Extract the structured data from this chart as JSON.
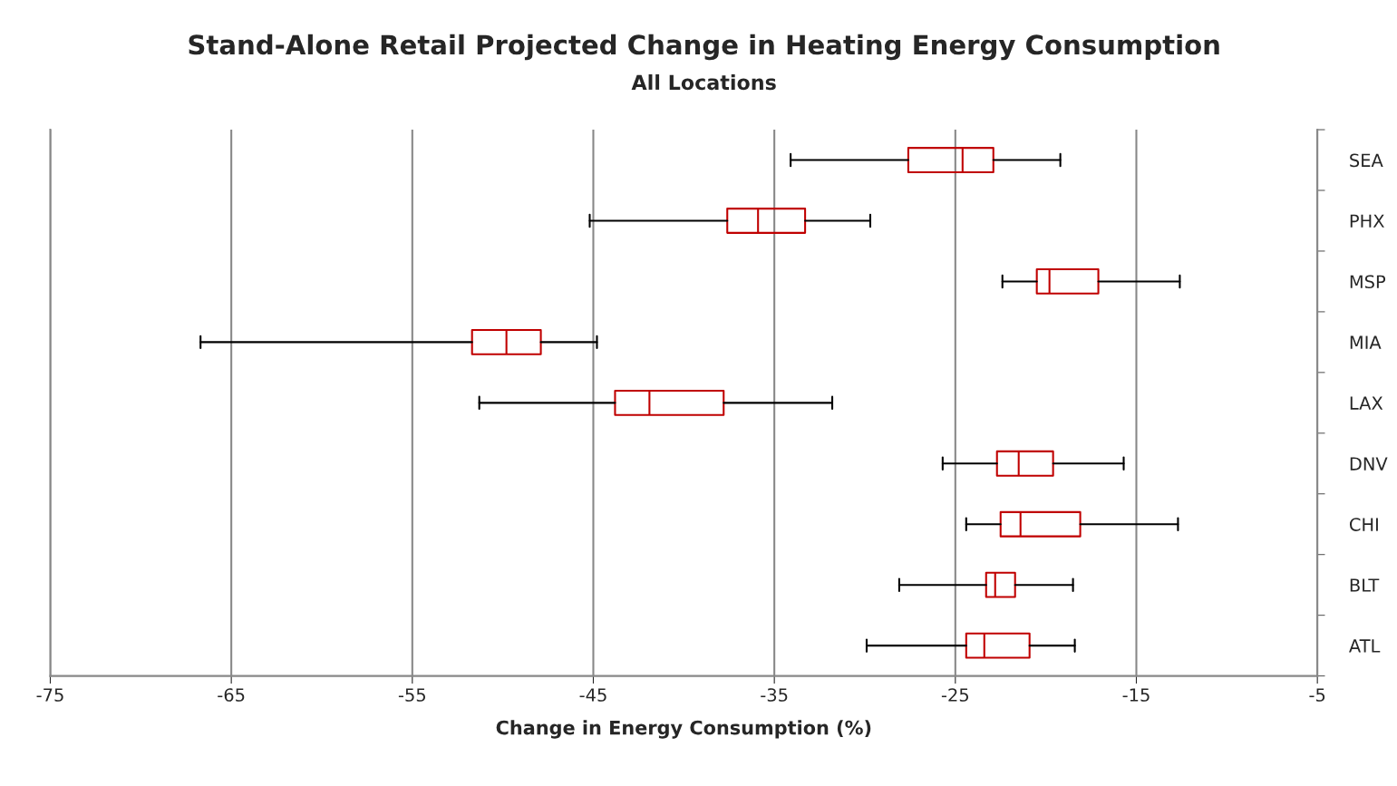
{
  "chart_data": {
    "type": "box",
    "title": "Stand-Alone Retail Projected Change in Heating Energy Consumption",
    "subtitle": "All Locations",
    "xlabel": "Change in Energy Consumption (%)",
    "orientation": "horizontal",
    "categories": [
      "SEA",
      "PHX",
      "MSP",
      "MIA",
      "LAX",
      "DNV",
      "CHI",
      "BLT",
      "ATL"
    ],
    "color": "#c00000",
    "boxes": [
      {
        "low": -34.1,
        "q1": -27.6,
        "median": -24.6,
        "q3": -22.9,
        "high": -19.2
      },
      {
        "low": -45.2,
        "q1": -37.6,
        "median": -35.9,
        "q3": -33.3,
        "high": -29.7
      },
      {
        "low": -22.4,
        "q1": -20.5,
        "median": -19.8,
        "q3": -17.1,
        "high": -12.6
      },
      {
        "low": -66.7,
        "q1": -51.7,
        "median": -49.8,
        "q3": -47.9,
        "high": -44.8
      },
      {
        "low": -51.3,
        "q1": -43.8,
        "median": -41.9,
        "q3": -37.8,
        "high": -31.8
      },
      {
        "low": -25.7,
        "q1": -22.7,
        "median": -21.5,
        "q3": -19.6,
        "high": -15.7
      },
      {
        "low": -24.4,
        "q1": -22.5,
        "median": -21.4,
        "q3": -18.1,
        "high": -12.7
      },
      {
        "low": -28.1,
        "q1": -23.3,
        "median": -22.8,
        "q3": -21.7,
        "high": -18.5
      },
      {
        "low": -29.9,
        "q1": -24.4,
        "median": -23.4,
        "q3": -20.9,
        "high": -18.4
      }
    ],
    "xlim": [
      -75,
      -5
    ],
    "xticks": [
      -75,
      -65,
      -55,
      -45,
      -35,
      -25,
      -15,
      -5
    ],
    "grid": "x"
  }
}
